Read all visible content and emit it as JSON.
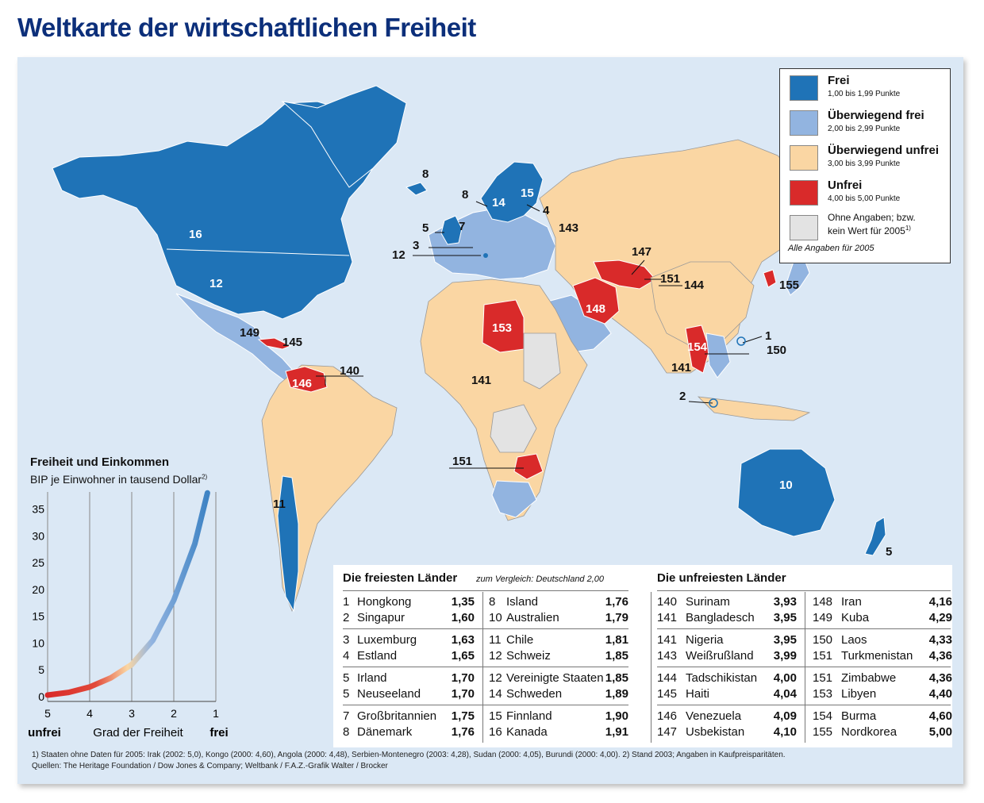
{
  "title": "Weltkarte der wirtschaftlichen Freiheit",
  "colors": {
    "frei": "#1f73b7",
    "ueberwiegend_frei": "#92b4e0",
    "ueberwiegend_unfrei": "#fad6a3",
    "unfrei": "#d92a2a",
    "ohne": "#e3e3e3",
    "ocean": "#dbe8f5",
    "title": "#0c2f7a"
  },
  "legend": {
    "items": [
      {
        "title": "Frei",
        "sub": "1,00 bis 1,99 Punkte"
      },
      {
        "title": "Überwiegend frei",
        "sub": "2,00 bis 2,99 Punkte"
      },
      {
        "title": "Überwiegend unfrei",
        "sub": "3,00 bis 3,99 Punkte"
      },
      {
        "title": "Unfrei",
        "sub": "4,00 bis 5,00 Punkte"
      }
    ],
    "no_data_line1": "Ohne Angaben; bzw.",
    "no_data_line2": "kein Wert für 2005",
    "no_data_sup": "1)",
    "note": "Alle Angaben für 2005"
  },
  "map_labels": [
    "16",
    "12",
    "8",
    "8",
    "5",
    "7",
    "3",
    "12",
    "14",
    "15",
    "4",
    "143",
    "147",
    "151",
    "144",
    "148",
    "155",
    "153",
    "149",
    "145",
    "146",
    "140",
    "141",
    "141",
    "154",
    "1",
    "150",
    "2",
    "151",
    "10",
    "5",
    "11"
  ],
  "chart_data": {
    "type": "line",
    "title": "Freiheit und Einkommen",
    "ylabel": "BIP je Einwohner in tausend Dollar",
    "ylabel_sup": "2)",
    "xlabel": "Grad der Freiheit",
    "x_left_label": "unfrei",
    "x_right_label": "frei",
    "x_ticks": [
      "5",
      "4",
      "3",
      "2",
      "1"
    ],
    "y_ticks": [
      "35",
      "30",
      "25",
      "20",
      "15",
      "10",
      "5",
      "0"
    ],
    "xlim": [
      5,
      1
    ],
    "ylim": [
      0,
      37
    ],
    "x": [
      5.0,
      4.5,
      4.0,
      3.5,
      3.0,
      2.5,
      2.0,
      1.5,
      1.2
    ],
    "y": [
      0.3,
      0.8,
      1.8,
      3.5,
      6.0,
      10.5,
      18.0,
      28.5,
      38.0
    ]
  },
  "tables": {
    "free_title": "Die freiesten Länder",
    "compare": "zum Vergleich: Deutschland 2,00",
    "unfree_title": "Die unfreiesten Länder",
    "free_col1": [
      {
        "rank": "1",
        "name": "Hongkong",
        "score": "1,35"
      },
      {
        "rank": "2",
        "name": "Singapur",
        "score": "1,60"
      },
      {
        "rank": "3",
        "name": "Luxemburg",
        "score": "1,63"
      },
      {
        "rank": "4",
        "name": "Estland",
        "score": "1,65"
      },
      {
        "rank": "5",
        "name": "Irland",
        "score": "1,70"
      },
      {
        "rank": "5",
        "name": "Neuseeland",
        "score": "1,70"
      },
      {
        "rank": "7",
        "name": "Großbritannien",
        "score": "1,75"
      },
      {
        "rank": "8",
        "name": "Dänemark",
        "score": "1,76"
      }
    ],
    "free_col2": [
      {
        "rank": "8",
        "name": "Island",
        "score": "1,76"
      },
      {
        "rank": "10",
        "name": "Australien",
        "score": "1,79"
      },
      {
        "rank": "11",
        "name": "Chile",
        "score": "1,81"
      },
      {
        "rank": "12",
        "name": "Schweiz",
        "score": "1,85"
      },
      {
        "rank": "12",
        "name": "Vereinigte Staaten",
        "score": "1,85"
      },
      {
        "rank": "14",
        "name": "Schweden",
        "score": "1,89"
      },
      {
        "rank": "15",
        "name": "Finnland",
        "score": "1,90"
      },
      {
        "rank": "16",
        "name": "Kanada",
        "score": "1,91"
      }
    ],
    "unfree_col1": [
      {
        "rank": "140",
        "name": "Surinam",
        "score": "3,93"
      },
      {
        "rank": "141",
        "name": "Bangladesch",
        "score": "3,95"
      },
      {
        "rank": "141",
        "name": "Nigeria",
        "score": "3,95"
      },
      {
        "rank": "143",
        "name": "Weißrußland",
        "score": "3,99"
      },
      {
        "rank": "144",
        "name": "Tadschikistan",
        "score": "4,00"
      },
      {
        "rank": "145",
        "name": "Haiti",
        "score": "4,04"
      },
      {
        "rank": "146",
        "name": "Venezuela",
        "score": "4,09"
      },
      {
        "rank": "147",
        "name": "Usbekistan",
        "score": "4,10"
      }
    ],
    "unfree_col2": [
      {
        "rank": "148",
        "name": "Iran",
        "score": "4,16"
      },
      {
        "rank": "149",
        "name": "Kuba",
        "score": "4,29"
      },
      {
        "rank": "150",
        "name": "Laos",
        "score": "4,33"
      },
      {
        "rank": "151",
        "name": "Turkmenistan",
        "score": "4,36"
      },
      {
        "rank": "151",
        "name": "Zimbabwe",
        "score": "4,36"
      },
      {
        "rank": "153",
        "name": "Libyen",
        "score": "4,40"
      },
      {
        "rank": "154",
        "name": "Burma",
        "score": "4,60"
      },
      {
        "rank": "155",
        "name": "Nordkorea",
        "score": "5,00"
      }
    ]
  },
  "footnotes": {
    "line1": "1) Staaten ohne Daten für 2005: Irak (2002: 5,0), Kongo (2000: 4,60), Angola  (2000: 4,48), Serbien-Montenegro (2003: 4,28), Sudan (2000: 4,05), Burundi (2000: 4,00).  2) Stand 2003; Angaben in Kaufpreisparitäten.",
    "line2": "Quellen: The Heritage Foundation / Dow Jones & Company; Weltbank / F.A.Z.-Grafik Walter / Brocker"
  }
}
